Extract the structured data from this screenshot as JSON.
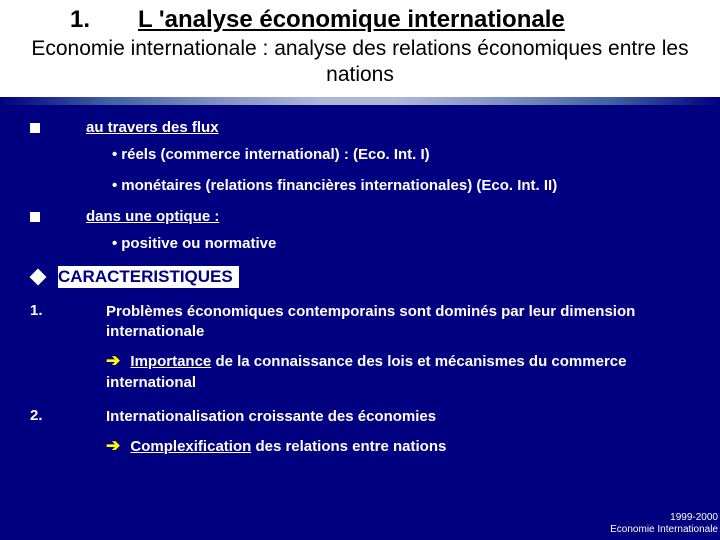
{
  "title": {
    "number": "1.",
    "text": "L 'analyse économique internationale"
  },
  "subtitle": "Economie internationale : analyse des relations économiques entre les nations",
  "flux": {
    "header": "au travers des flux",
    "items": [
      "réels (commerce international) : (Eco. Int. I)",
      "monétaires (relations financières internationales) (Eco. Int. II)"
    ]
  },
  "optique": {
    "header": "dans une optique :",
    "items": [
      "positive ou normative"
    ]
  },
  "carac": {
    "label": "CARACTERISTIQUES"
  },
  "point1": {
    "num": "1.",
    "text": "Problèmes économiques contemporains sont dominés par leur dimension internationale",
    "arrow_word": "Importance",
    "arrow_rest": " de la connaissance des lois et mécanismes du commerce international"
  },
  "point2": {
    "num": "2.",
    "text": "Internationalisation croissante des économies",
    "arrow_word": "Complexification",
    "arrow_rest": " des relations entre nations"
  },
  "footer": {
    "line1": "1999-2000",
    "line2": "Economie Internationale"
  }
}
